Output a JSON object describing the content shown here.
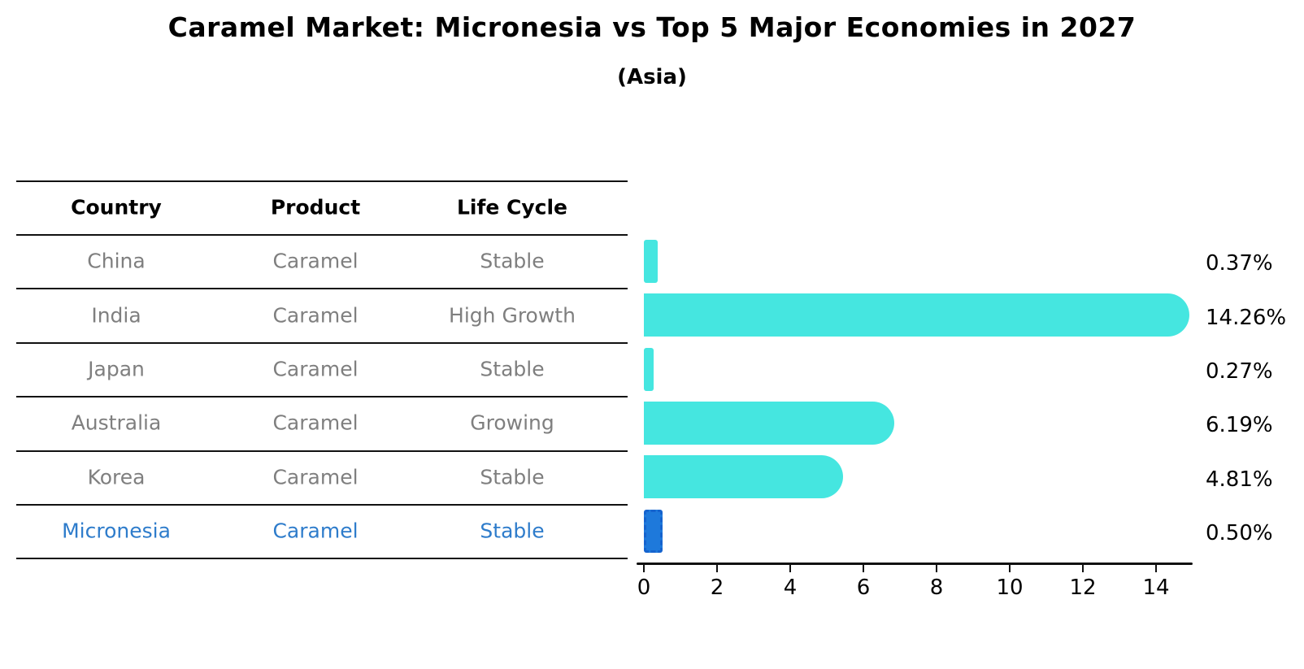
{
  "title": "Caramel Market: Micronesia vs Top 5 Major Economies in 2027",
  "subtitle": "(Asia)",
  "table": {
    "headers": [
      "Country",
      "Product",
      "Life Cycle"
    ],
    "rows": [
      {
        "country": "China",
        "product": "Caramel",
        "life_cycle": "Stable",
        "highlight": false
      },
      {
        "country": "India",
        "product": "Caramel",
        "life_cycle": "High Growth",
        "highlight": false
      },
      {
        "country": "Japan",
        "product": "Caramel",
        "life_cycle": "Stable",
        "highlight": false
      },
      {
        "country": "Australia",
        "product": "Caramel",
        "life_cycle": "Growing",
        "highlight": false
      },
      {
        "country": "Korea",
        "product": "Caramel",
        "life_cycle": "Stable",
        "highlight": false
      },
      {
        "country": "Micronesia",
        "product": "Caramel",
        "life_cycle": "Stable",
        "highlight": true
      }
    ]
  },
  "chart_data": {
    "type": "bar",
    "orientation": "horizontal",
    "title": "Caramel Market: Micronesia vs Top 5 Major Economies in 2027",
    "subtitle": "(Asia)",
    "categories": [
      "China",
      "India",
      "Japan",
      "Australia",
      "Korea",
      "Micronesia"
    ],
    "values": [
      0.37,
      14.26,
      0.27,
      6.19,
      4.81,
      0.5
    ],
    "value_labels": [
      "0.37%",
      "14.26%",
      "0.27%",
      "6.19%",
      "4.81%",
      "0.50%"
    ],
    "xlabel": "",
    "ylabel": "",
    "xlim": [
      0,
      15.1
    ],
    "x_ticks": [
      0,
      2,
      4,
      6,
      8,
      10,
      12,
      14
    ],
    "grid": false,
    "legend": null,
    "highlight_category": "Micronesia"
  },
  "colors": {
    "bar": "#45e6e0",
    "highlight_bar_fill": "#1e79db",
    "highlight_bar_border": "#1563ce",
    "highlight_text": "#2e7ccb",
    "table_text": "#7f7f7f",
    "heading_text": "#000000",
    "axis": "#111111"
  }
}
